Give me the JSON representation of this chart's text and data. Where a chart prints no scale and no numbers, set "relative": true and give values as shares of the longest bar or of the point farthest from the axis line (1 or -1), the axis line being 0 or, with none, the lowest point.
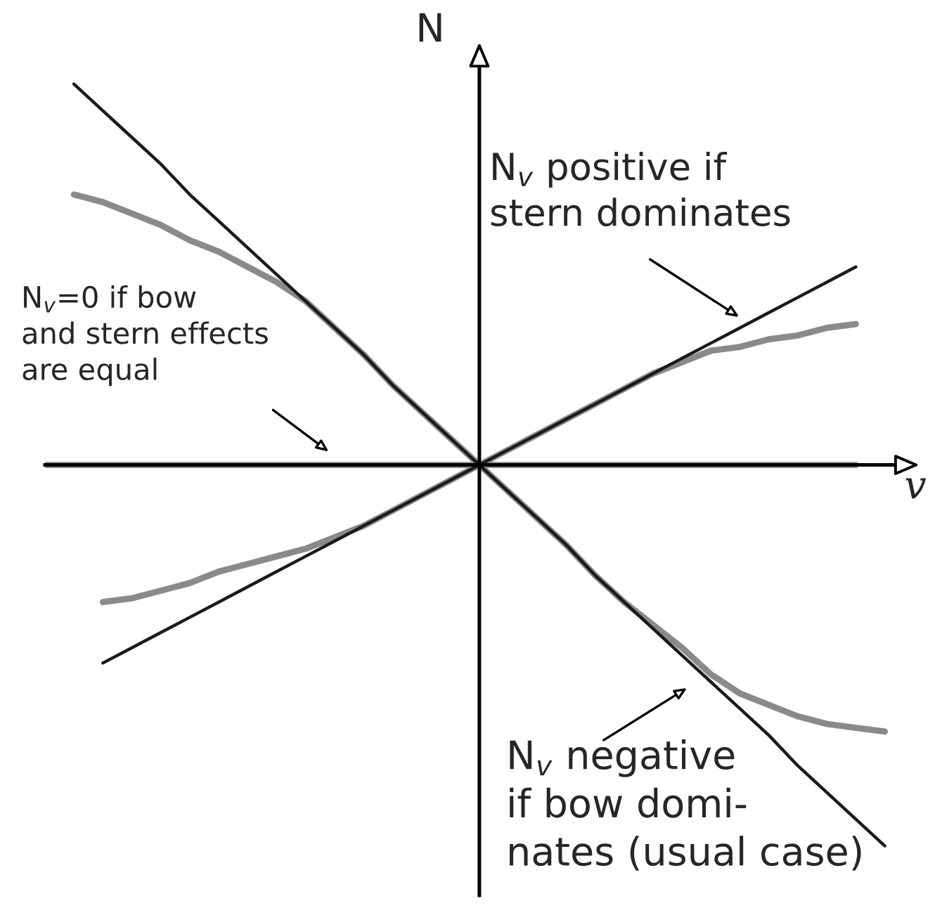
{
  "chart_data": {
    "type": "line",
    "relative": true,
    "xlabel": "v",
    "ylabel": "N",
    "categories": [
      null,
      null,
      null,
      null,
      null,
      null,
      null,
      null,
      null,
      null,
      null,
      null,
      null,
      null,
      null,
      null,
      null,
      null,
      null,
      null,
      null,
      null,
      null,
      null,
      null,
      null,
      null,
      null,
      null,
      null,
      null
    ],
    "series": [
      {
        "color": "#8a8a8a",
        "values": [
          0,
          0,
          0,
          0,
          0,
          0,
          0,
          0,
          0,
          0,
          0,
          0,
          0,
          0,
          0,
          0,
          0,
          0,
          0,
          0,
          0,
          0,
          0,
          0,
          0,
          0,
          0,
          0,
          0,
          null,
          null
        ]
      },
      {
        "color": "#8a8a8a",
        "values": [
          null,
          0.71,
          0.69,
          0.66,
          0.63,
          0.59,
          0.56,
          0.52,
          0.48,
          0.43,
          0.36,
          0.29,
          0.21,
          0.14,
          0.07,
          0,
          -0.07,
          -0.14,
          -0.21,
          -0.29,
          -0.36,
          -0.42,
          -0.48,
          -0.55,
          -0.6,
          -0.63,
          -0.66,
          -0.68,
          -0.69,
          -0.7,
          null
        ]
      },
      {
        "color": "#8a8a8a",
        "values": [
          null,
          null,
          -0.36,
          -0.35,
          -0.33,
          -0.31,
          -0.28,
          -0.26,
          -0.24,
          -0.22,
          -0.19,
          -0.16,
          -0.12,
          -0.08,
          -0.04,
          0,
          0.04,
          0.08,
          0.12,
          0.16,
          0.2,
          0.24,
          0.27,
          0.3,
          0.31,
          0.33,
          0.34,
          0.36,
          0.37,
          null,
          null
        ]
      },
      {
        "color": "#1a1a1a",
        "values": [
          null,
          1,
          0.93,
          0.86,
          0.79,
          0.71,
          0.64,
          0.57,
          0.5,
          0.43,
          0.36,
          0.29,
          0.21,
          0.14,
          0.07,
          0,
          -0.07,
          -0.14,
          -0.21,
          -0.29,
          -0.36,
          -0.43,
          -0.5,
          -0.57,
          -0.64,
          -0.71,
          -0.79,
          -0.86,
          -0.93,
          -1,
          null
        ]
      },
      {
        "color": "#1a1a1a",
        "values": [
          null,
          null,
          -0.52,
          -0.48,
          -0.44,
          -0.4,
          -0.36,
          -0.32,
          -0.28,
          -0.24,
          -0.2,
          -0.16,
          -0.12,
          -0.08,
          -0.04,
          0,
          0.04,
          0.08,
          0.12,
          0.16,
          0.2,
          0.24,
          0.28,
          0.32,
          0.36,
          0.4,
          0.44,
          0.48,
          0.52,
          null,
          null
        ]
      }
    ],
    "annotations": [
      "N$_{v}$ positive if\nstern dominates",
      "N$_{v}$=0 if bow\nand stern effects\nare equal",
      "N$_{v}$ negative\nif bow domi-\nnates (usual case)"
    ]
  }
}
